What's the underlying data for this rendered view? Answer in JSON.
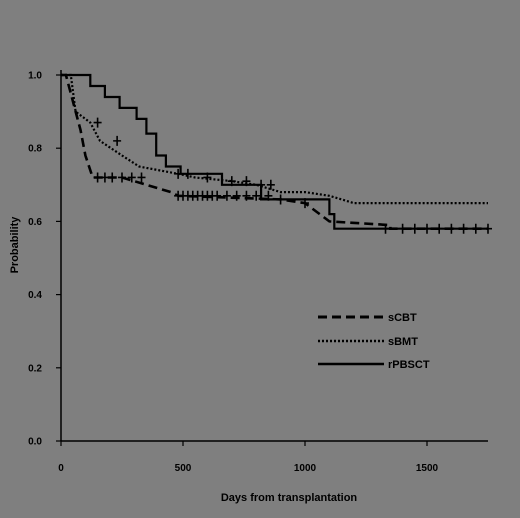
{
  "chart_data": {
    "type": "line",
    "title": "",
    "xlabel": "Days from transplantation",
    "ylabel": "Probability",
    "xlim": [
      0,
      1750
    ],
    "ylim": [
      0,
      1.0
    ],
    "x_ticks": [
      0,
      500,
      1000,
      1500
    ],
    "x_tick_labels": [
      "0",
      "500",
      "1000",
      "1500"
    ],
    "y_ticks": [
      0.0,
      0.2,
      0.4,
      0.6,
      0.8,
      1.0
    ],
    "y_tick_labels": [
      "0.0",
      "0.2",
      "0.4",
      "0.6",
      "0.8",
      "1.0"
    ],
    "grid": false,
    "legend_position": "right",
    "series": [
      {
        "name": "sCBT",
        "style": "dashed",
        "color": "#000000",
        "points": [
          [
            0,
            1.0
          ],
          [
            20,
            1.0
          ],
          [
            40,
            0.95
          ],
          [
            60,
            0.9
          ],
          [
            80,
            0.85
          ],
          [
            100,
            0.78
          ],
          [
            130,
            0.72
          ],
          [
            250,
            0.72
          ],
          [
            350,
            0.7
          ],
          [
            450,
            0.68
          ],
          [
            480,
            0.67
          ],
          [
            900,
            0.66
          ],
          [
            1000,
            0.65
          ],
          [
            1100,
            0.6
          ],
          [
            1350,
            0.59
          ],
          [
            1350,
            0.58
          ],
          [
            1750,
            0.58
          ]
        ],
        "censor_x": [
          150,
          180,
          210,
          250,
          290,
          330,
          480,
          500,
          520,
          540,
          560,
          580,
          600,
          620,
          640,
          680,
          720,
          760,
          800,
          850,
          900,
          1000,
          1400,
          1450,
          1500,
          1550,
          1600,
          1650,
          1700,
          1750
        ]
      },
      {
        "name": "sBMT",
        "style": "dotted",
        "color": "#000000",
        "points": [
          [
            0,
            1.0
          ],
          [
            40,
            1.0
          ],
          [
            60,
            0.9
          ],
          [
            120,
            0.87
          ],
          [
            160,
            0.82
          ],
          [
            250,
            0.78
          ],
          [
            320,
            0.75
          ],
          [
            400,
            0.74
          ],
          [
            480,
            0.73
          ],
          [
            550,
            0.72
          ],
          [
            700,
            0.71
          ],
          [
            800,
            0.7
          ],
          [
            900,
            0.68
          ],
          [
            1000,
            0.68
          ],
          [
            1100,
            0.67
          ],
          [
            1150,
            0.66
          ],
          [
            1200,
            0.65
          ],
          [
            1750,
            0.65
          ]
        ],
        "censor_x": [
          150,
          230,
          480,
          520,
          600,
          700,
          760,
          820,
          860
        ]
      },
      {
        "name": "rPBSCT",
        "style": "solid",
        "color": "#000000",
        "points": [
          [
            0,
            1.0
          ],
          [
            120,
            1.0
          ],
          [
            120,
            0.97
          ],
          [
            180,
            0.97
          ],
          [
            180,
            0.94
          ],
          [
            240,
            0.94
          ],
          [
            240,
            0.91
          ],
          [
            310,
            0.91
          ],
          [
            310,
            0.88
          ],
          [
            350,
            0.88
          ],
          [
            350,
            0.84
          ],
          [
            390,
            0.84
          ],
          [
            390,
            0.78
          ],
          [
            430,
            0.78
          ],
          [
            430,
            0.75
          ],
          [
            490,
            0.75
          ],
          [
            490,
            0.73
          ],
          [
            660,
            0.73
          ],
          [
            660,
            0.7
          ],
          [
            820,
            0.7
          ],
          [
            820,
            0.66
          ],
          [
            1100,
            0.66
          ],
          [
            1100,
            0.62
          ],
          [
            1120,
            0.62
          ],
          [
            1120,
            0.58
          ],
          [
            1750,
            0.58
          ]
        ],
        "censor_x": [
          1330
        ]
      }
    ]
  }
}
